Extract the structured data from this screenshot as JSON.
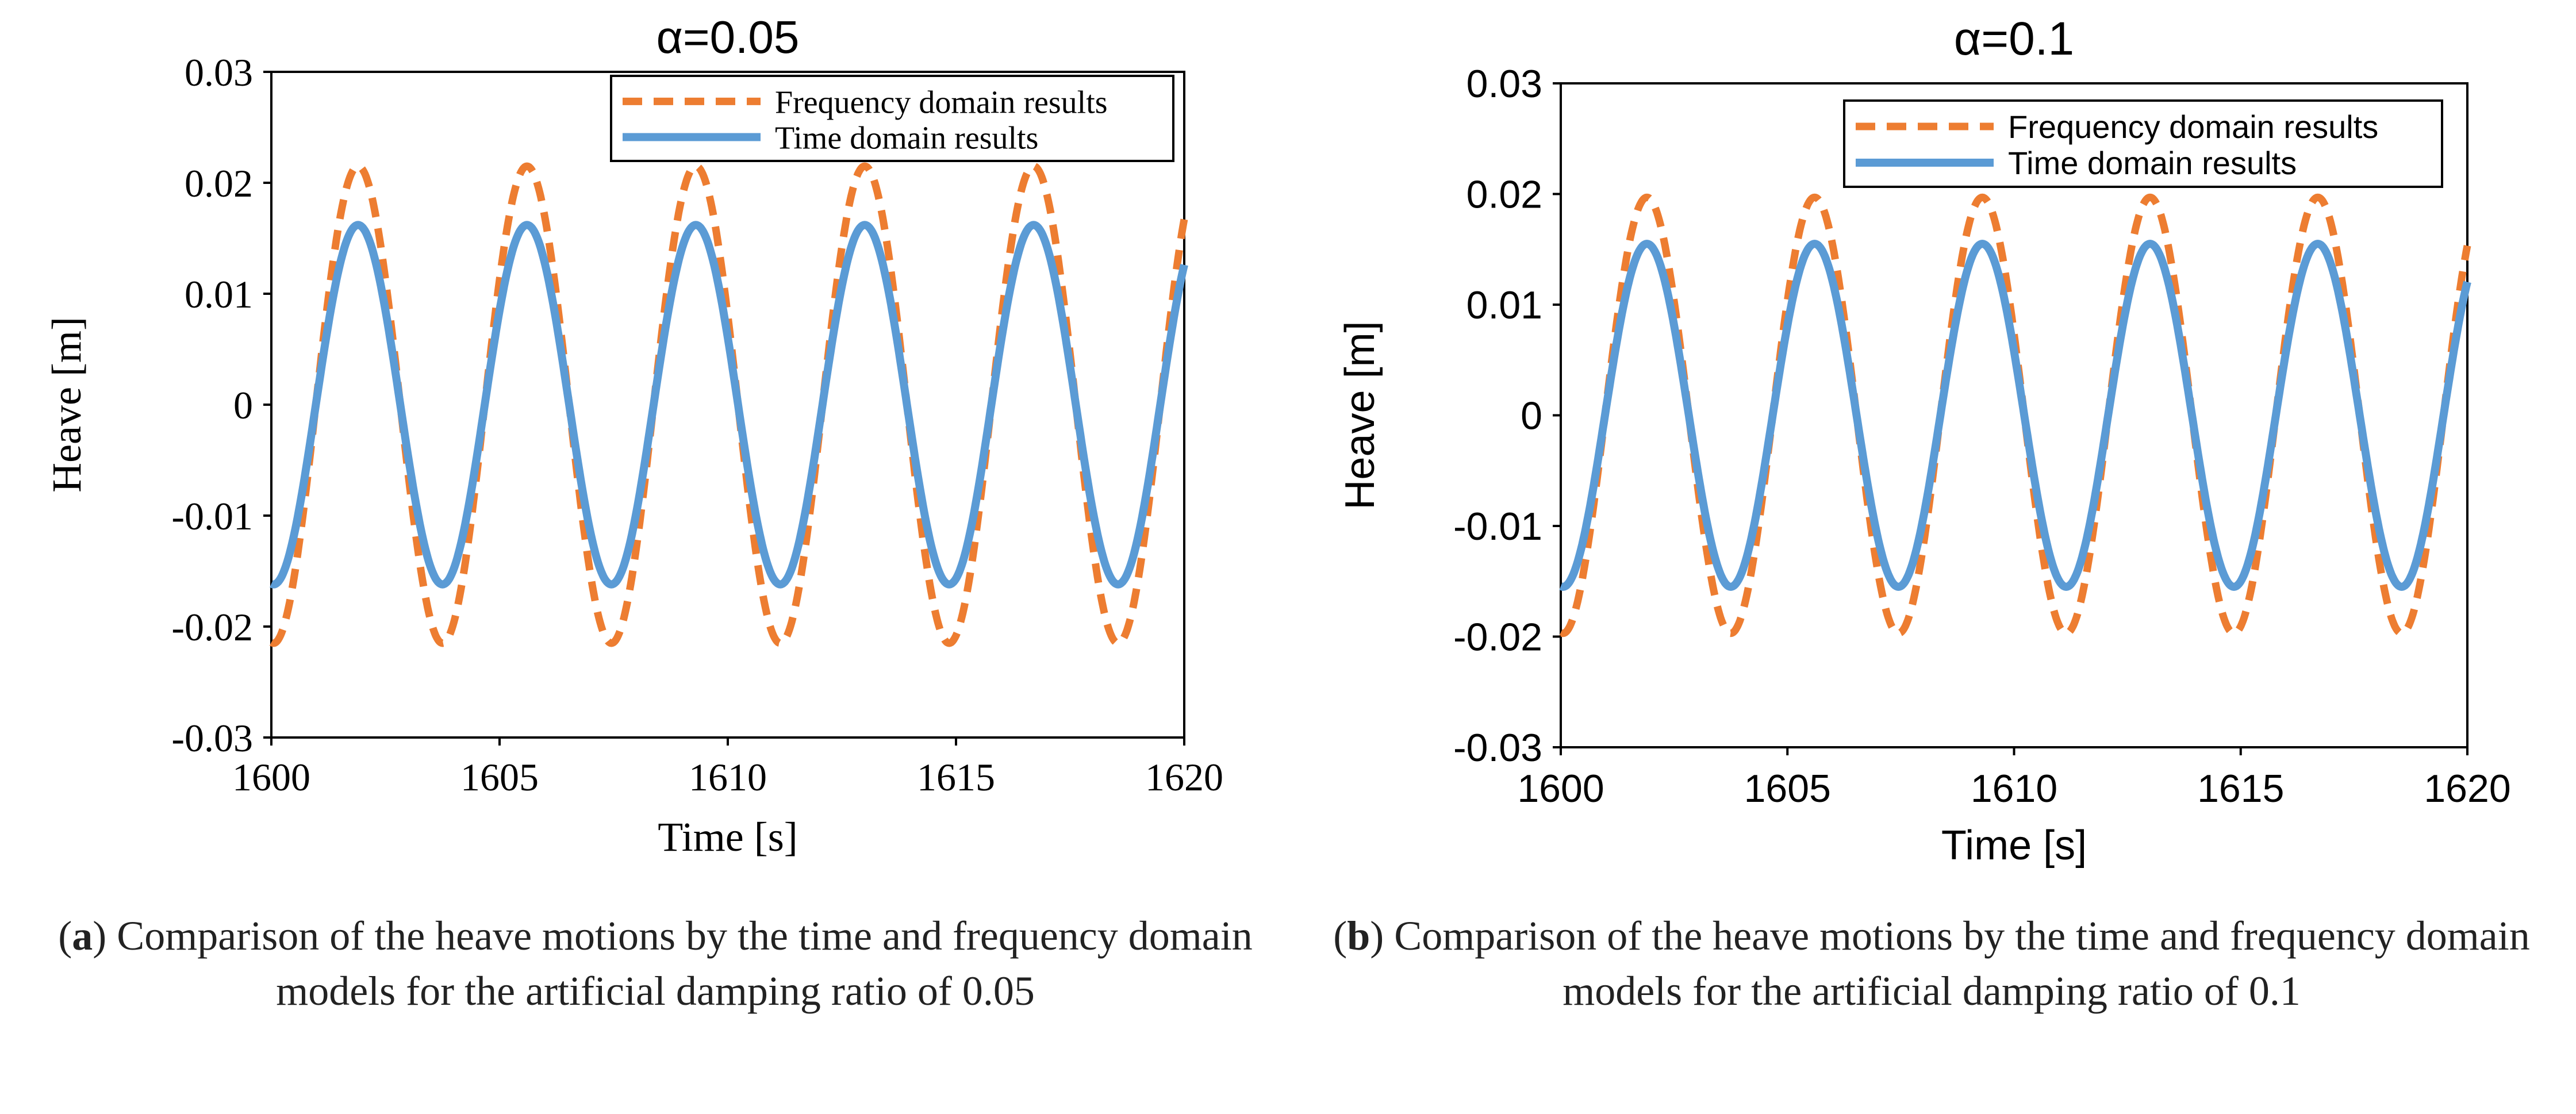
{
  "chart_data": [
    {
      "type": "line",
      "title": "α=0.05",
      "xlabel": "Time [s]",
      "ylabel": "Heave [m]",
      "xlim": [
        1600,
        1620
      ],
      "ylim": [
        -0.03,
        0.03
      ],
      "xticks": [
        "1600",
        "1605",
        "1610",
        "1615",
        "1620"
      ],
      "yticks": [
        "0.03",
        "0.02",
        "0.01",
        "0",
        "-0.01",
        "-0.02",
        "-0.03"
      ],
      "grid": false,
      "legend_position": "top-right",
      "period_s": 3.7,
      "first_peak_s": 1601.9,
      "series": [
        {
          "name": "Frequency domain results",
          "style": "dashed",
          "color": "#ED7D31",
          "amplitude": 0.0215
        },
        {
          "name": "Time domain results",
          "style": "solid",
          "color": "#5B9BD5",
          "amplitude": 0.0162
        }
      ],
      "caption": {
        "label": "a",
        "text": ") Comparison of the heave motions by the time and frequency domain models for the artificial damping ratio of 0.05"
      }
    },
    {
      "type": "line",
      "title": "α=0.1",
      "xlabel": "Time [s]",
      "ylabel": "Heave [m]",
      "xlim": [
        1600,
        1620
      ],
      "ylim": [
        -0.03,
        0.03
      ],
      "xticks": [
        "1600",
        "1605",
        "1610",
        "1615",
        "1620"
      ],
      "yticks": [
        "0.03",
        "0.02",
        "0.01",
        "0",
        "-0.01",
        "-0.02",
        "-0.03"
      ],
      "grid": false,
      "legend_position": "top-right",
      "period_s": 3.7,
      "first_peak_s": 1601.9,
      "series": [
        {
          "name": "Frequency domain results",
          "style": "dashed",
          "color": "#ED7D31",
          "amplitude": 0.0197
        },
        {
          "name": "Time domain results",
          "style": "solid",
          "color": "#5B9BD5",
          "amplitude": 0.0155
        }
      ],
      "caption": {
        "label": "b",
        "text": ") Comparison of the heave motions by the time and frequency domain models for the artificial damping ratio of 0.1"
      }
    }
  ]
}
